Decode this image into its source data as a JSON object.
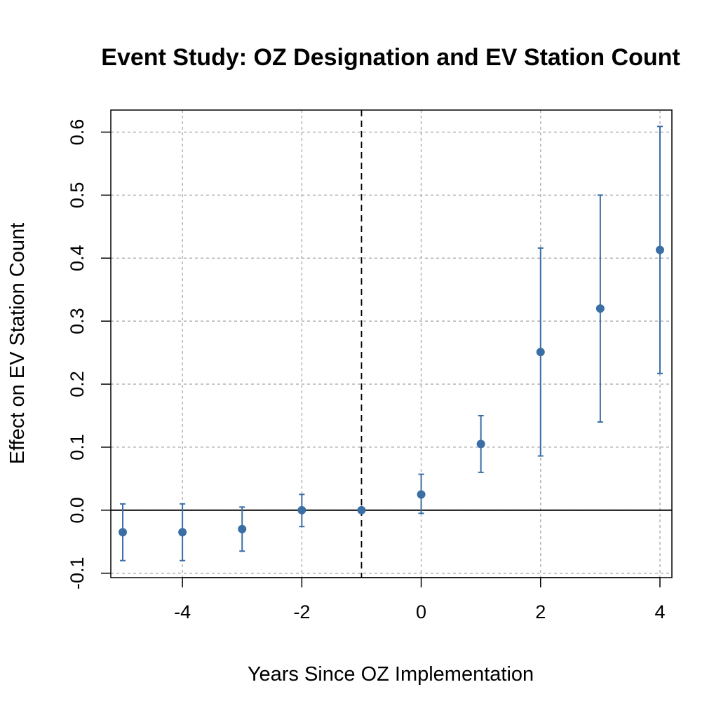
{
  "chart_data": {
    "type": "scatter",
    "title": "Event Study: OZ Designation and EV Station Count",
    "xlabel": "Years Since OZ Implementation",
    "ylabel": "Effect on EV Station Count",
    "xlim": [
      -5.2,
      4.2
    ],
    "ylim": [
      -0.107,
      0.635
    ],
    "x_ticks": [
      -4,
      -2,
      0,
      2,
      4
    ],
    "x_tick_labels": [
      "-4",
      "-2",
      "0",
      "2",
      "4"
    ],
    "y_ticks": [
      -0.1,
      0.0,
      0.1,
      0.2,
      0.3,
      0.4,
      0.5,
      0.6
    ],
    "y_tick_labels": [
      "-0.1",
      "0.0",
      "0.1",
      "0.2",
      "0.3",
      "0.4",
      "0.5",
      "0.6"
    ],
    "grid": true,
    "reference_lines": {
      "horizontal_y": 0,
      "vertical_dashed_x": -1
    },
    "series": [
      {
        "color": "#3a6ea5",
        "points": [
          {
            "x": -5,
            "y": -0.035,
            "lower": -0.08,
            "upper": 0.01
          },
          {
            "x": -4,
            "y": -0.035,
            "lower": -0.08,
            "upper": 0.01
          },
          {
            "x": -3,
            "y": -0.03,
            "lower": -0.065,
            "upper": 0.005
          },
          {
            "x": -2,
            "y": 0.0,
            "lower": -0.026,
            "upper": 0.025
          },
          {
            "x": -1,
            "y": 0.0,
            "lower": 0.0,
            "upper": 0.0
          },
          {
            "x": 0,
            "y": 0.025,
            "lower": -0.005,
            "upper": 0.057
          },
          {
            "x": 1,
            "y": 0.105,
            "lower": 0.06,
            "upper": 0.15
          },
          {
            "x": 2,
            "y": 0.251,
            "lower": 0.086,
            "upper": 0.416
          },
          {
            "x": 3,
            "y": 0.32,
            "lower": 0.14,
            "upper": 0.5
          },
          {
            "x": 4,
            "y": 0.413,
            "lower": 0.217,
            "upper": 0.609
          }
        ]
      }
    ]
  }
}
